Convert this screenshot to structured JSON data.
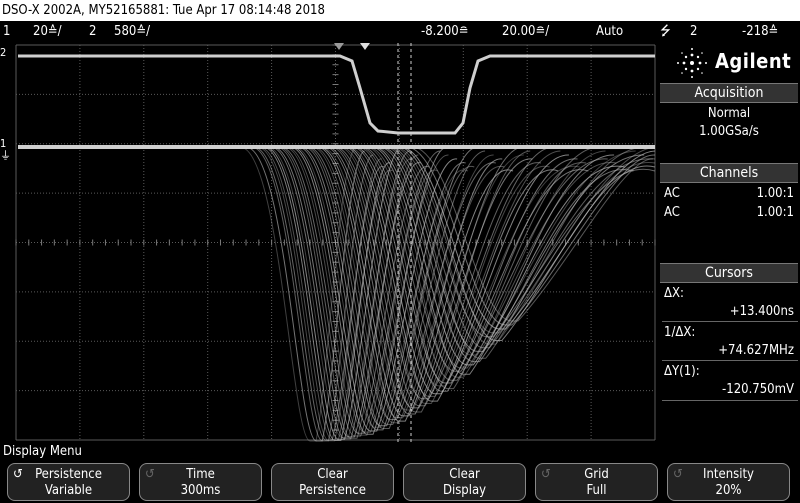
{
  "header": {
    "title": "DSO-X 2002A, MY52165881: Tue Apr 17 08:14:48 2018"
  },
  "status": {
    "ch1_num": "1",
    "ch1_scale": "20≙/",
    "ch2_num": "2",
    "ch2_scale": "580≙/",
    "time_offset": "-8.200≘",
    "time_scale": "20.00≘/",
    "trigger_mode": "Auto",
    "trigger_icon": "⭍",
    "trigger_source": "2",
    "trigger_level": "-218≙"
  },
  "markers": {
    "ch2_ground": "2",
    "ch1_ground": "1",
    "ch1_ground_sym": "⏚"
  },
  "logo": {
    "brand": "Agilent"
  },
  "acquisition": {
    "header": "Acquisition",
    "mode": "Normal",
    "rate": "1.00GSa/s"
  },
  "channels": {
    "header": "Channels",
    "rows": [
      {
        "coupling": "AC",
        "probe": "1.00:1"
      },
      {
        "coupling": "AC",
        "probe": "1.00:1"
      }
    ]
  },
  "cursors": {
    "header": "Cursors",
    "dx_label": "ΔX:",
    "dx_value": "+13.400ns",
    "inv_dx_label": "1/ΔX:",
    "inv_dx_value": "+74.627MHz",
    "dy_label": "ΔY(1):",
    "dy_value": "-120.750mV"
  },
  "menu": {
    "title": "Display Menu",
    "softkeys": [
      {
        "line1": "Persistence",
        "line2": "Variable",
        "knob": true
      },
      {
        "line1": "Time",
        "line2": "300ms",
        "knob": false
      },
      {
        "line1": "Clear",
        "line2": "Persistence",
        "knob": false
      },
      {
        "line1": "Clear",
        "line2": "Display",
        "knob": false
      },
      {
        "line1": "Grid",
        "line2": "Full",
        "knob": false
      },
      {
        "line1": "Intensity",
        "line2": "20%",
        "knob": false
      }
    ]
  },
  "colors": {
    "background": "#000000",
    "grid": "#5a5a5a",
    "trace": "#b8b8b8",
    "panel_header": "#333333"
  }
}
